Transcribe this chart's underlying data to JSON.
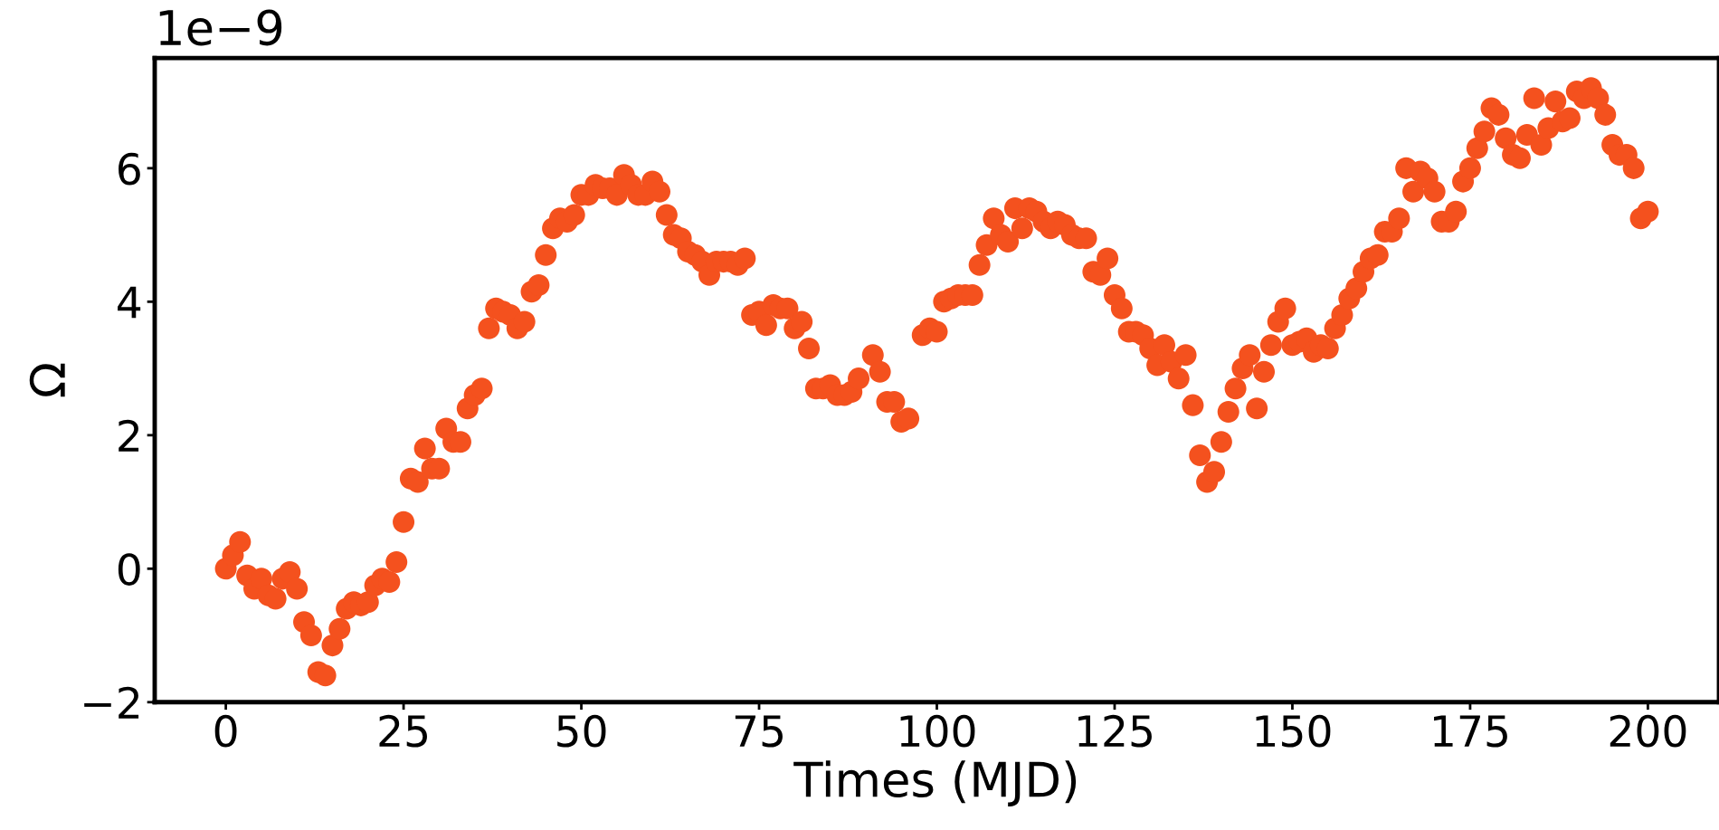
{
  "chart_data": {
    "type": "scatter",
    "xlabel": "Times (MJD)",
    "ylabel": "Ω",
    "annotations": [
      "1e−9"
    ],
    "xlim": [
      -10,
      210
    ],
    "xticks": [
      0,
      25,
      50,
      75,
      100,
      125,
      150,
      175,
      200
    ],
    "ylim": [
      -2,
      7.65
    ],
    "yticks": [
      {
        "value": -2,
        "label": "−2"
      },
      0,
      2,
      4,
      6
    ],
    "grid": false,
    "marker": "circle",
    "series": [
      {
        "color": "#f4511e",
        "x": [
          0,
          1,
          2,
          3,
          4,
          5,
          6,
          7,
          8,
          9,
          10,
          11,
          12,
          13,
          14,
          15,
          16,
          17,
          18,
          19,
          20,
          21,
          22,
          23,
          24,
          25,
          26,
          27,
          28,
          29,
          30,
          31,
          32,
          33,
          34,
          35,
          36,
          37,
          38,
          39,
          40,
          41,
          42,
          43,
          44,
          45,
          46,
          47,
          48,
          49,
          50,
          51,
          52,
          53,
          54,
          55,
          56,
          57,
          58,
          59,
          60,
          61,
          62,
          63,
          64,
          65,
          66,
          67,
          68,
          69,
          70,
          71,
          72,
          73,
          74,
          75,
          76,
          77,
          78,
          79,
          80,
          81,
          82,
          83,
          84,
          85,
          86,
          87,
          88,
          89,
          91,
          92,
          93,
          94,
          95,
          96,
          98,
          99,
          100,
          101,
          102,
          103,
          104,
          105,
          106,
          107,
          108,
          109,
          110,
          111,
          112,
          113,
          114,
          115,
          116,
          117,
          118,
          119,
          120,
          121,
          122,
          123,
          124,
          125,
          126,
          127,
          128,
          129,
          130,
          131,
          132,
          133,
          134,
          135,
          136,
          137,
          138,
          139,
          140,
          141,
          142,
          143,
          144,
          145,
          146,
          147,
          148,
          149,
          150,
          151,
          152,
          153,
          154,
          155,
          156,
          157,
          158,
          159,
          160,
          161,
          162,
          163,
          164,
          165,
          166,
          167,
          168,
          169,
          170,
          171,
          172,
          173,
          174,
          175,
          176,
          177,
          178,
          179,
          180,
          181,
          182,
          183,
          184,
          185,
          186,
          187,
          188,
          189,
          190,
          191,
          192,
          193,
          194,
          195,
          196,
          197,
          198,
          199,
          200
        ],
        "values": [
          0.0,
          0.2,
          0.4,
          -0.1,
          -0.3,
          -0.15,
          -0.4,
          -0.45,
          -0.15,
          -0.05,
          -0.3,
          -0.8,
          -1.0,
          -1.55,
          -1.6,
          -1.15,
          -0.9,
          -0.6,
          -0.5,
          -0.55,
          -0.5,
          -0.25,
          -0.15,
          -0.2,
          0.1,
          0.7,
          1.35,
          1.3,
          1.8,
          1.5,
          1.5,
          2.1,
          1.9,
          1.9,
          2.4,
          2.6,
          2.7,
          3.6,
          3.9,
          3.85,
          3.8,
          3.6,
          3.7,
          4.15,
          4.25,
          4.7,
          5.1,
          5.25,
          5.2,
          5.3,
          5.6,
          5.6,
          5.75,
          5.7,
          5.7,
          5.6,
          5.9,
          5.75,
          5.6,
          5.6,
          5.8,
          5.65,
          5.3,
          5.0,
          4.95,
          4.75,
          4.7,
          4.6,
          4.4,
          4.6,
          4.6,
          4.6,
          4.55,
          4.65,
          3.8,
          3.85,
          3.65,
          3.95,
          3.9,
          3.9,
          3.6,
          3.7,
          3.3,
          2.7,
          2.7,
          2.75,
          2.6,
          2.6,
          2.65,
          2.85,
          3.2,
          2.95,
          2.5,
          2.5,
          2.2,
          2.25,
          3.5,
          3.6,
          3.55,
          4.0,
          4.05,
          4.1,
          4.1,
          4.1,
          4.55,
          4.85,
          5.25,
          5.0,
          4.9,
          5.4,
          5.1,
          5.4,
          5.35,
          5.2,
          5.1,
          5.2,
          5.15,
          5.0,
          4.95,
          4.95,
          4.45,
          4.4,
          4.65,
          4.1,
          3.9,
          3.55,
          3.55,
          3.5,
          3.3,
          3.05,
          3.35,
          3.1,
          2.85,
          3.2,
          2.45,
          1.7,
          1.3,
          1.45,
          1.9,
          2.35,
          2.7,
          3.0,
          3.2,
          2.4,
          2.95,
          3.35,
          3.7,
          3.9,
          3.35,
          3.4,
          3.45,
          3.25,
          3.35,
          3.3,
          3.6,
          3.8,
          4.05,
          4.2,
          4.45,
          4.65,
          4.7,
          5.05,
          5.05,
          5.25,
          6.0,
          5.65,
          5.95,
          5.85,
          5.65,
          5.2,
          5.2,
          5.35,
          5.8,
          6.0,
          6.3,
          6.55,
          6.9,
          6.8,
          6.45,
          6.2,
          6.15,
          6.5,
          7.05,
          6.35,
          6.6,
          7.0,
          6.7,
          6.75,
          7.15,
          7.05,
          7.2,
          7.05,
          6.8,
          6.35,
          6.2,
          6.2,
          6.0,
          5.25,
          5.35
        ]
      }
    ]
  }
}
